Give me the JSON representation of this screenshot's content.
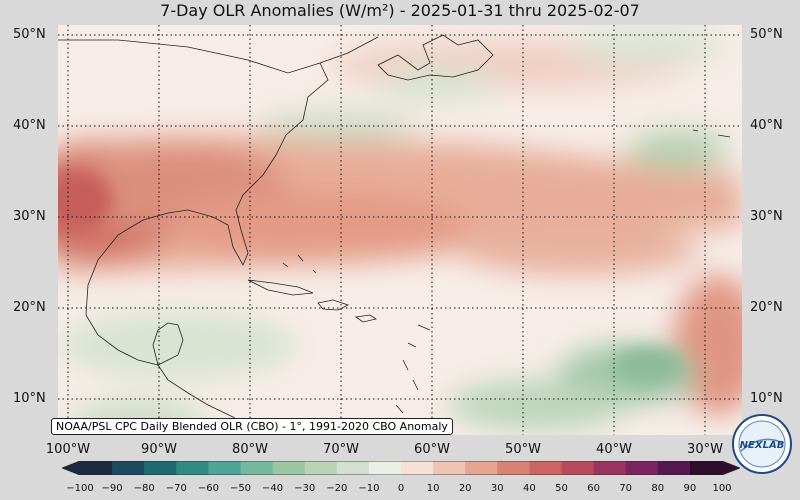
{
  "title": "7-Day OLR Anomalies (W/m²) - 2025-01-31 thru 2025-02-07",
  "lat_labels": [
    "50°N",
    "40°N",
    "30°N",
    "20°N",
    "10°N"
  ],
  "lon_labels": [
    "100°W",
    "90°W",
    "80°W",
    "70°W",
    "60°W",
    "50°W",
    "40°W",
    "30°W"
  ],
  "caption": "NOAA/PSL CPC Daily Blended OLR (CBO) - 1°, 1991-2020 CBO Anomaly",
  "logo_text": "NEXLAB",
  "colorbar": {
    "ticks": [
      "−100",
      "−90",
      "−80",
      "−70",
      "−60",
      "−50",
      "−40",
      "−30",
      "−20",
      "−10",
      "0",
      "10",
      "20",
      "30",
      "40",
      "50",
      "60",
      "70",
      "80",
      "90",
      "100"
    ],
    "colors": [
      "#1c2a3f",
      "#1d4a5e",
      "#1f6b72",
      "#2f8c83",
      "#4ea596",
      "#76b89e",
      "#9cc5a4",
      "#b9d3b6",
      "#d3e0cf",
      "#e8efe5",
      "#f8f3ef",
      "#f6e1d8",
      "#efc4b4",
      "#e6a491",
      "#d98472",
      "#cc6460",
      "#b8495f",
      "#9c3462",
      "#7a2460",
      "#55184f",
      "#2e0c2c"
    ]
  }
}
